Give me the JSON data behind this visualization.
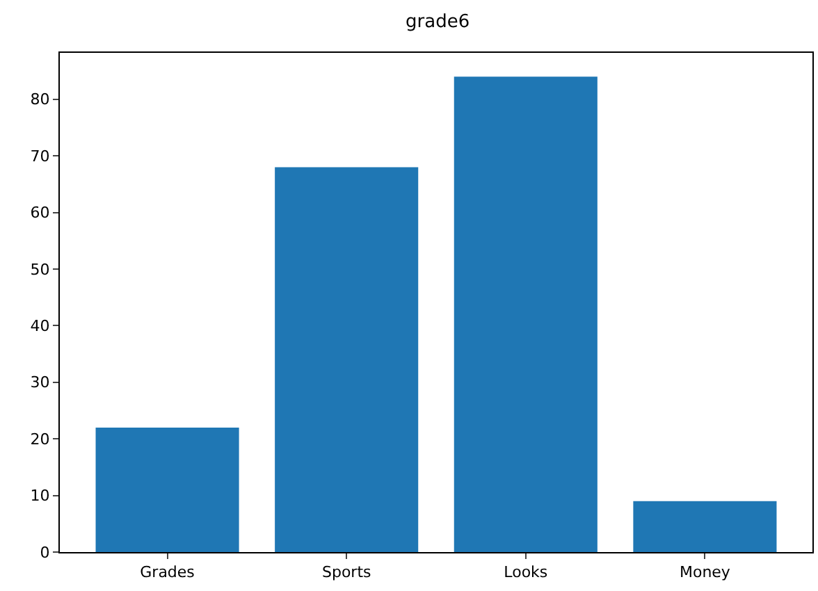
{
  "chart_data": {
    "type": "bar",
    "title": "grade6",
    "categories": [
      "Grades",
      "Sports",
      "Looks",
      "Money"
    ],
    "values": [
      22,
      68,
      84,
      9
    ],
    "color": "#1f77b4",
    "ylim": [
      0,
      88.2
    ],
    "yticks": [
      0,
      10,
      20,
      30,
      40,
      50,
      60,
      70,
      80
    ],
    "grid": false
  }
}
